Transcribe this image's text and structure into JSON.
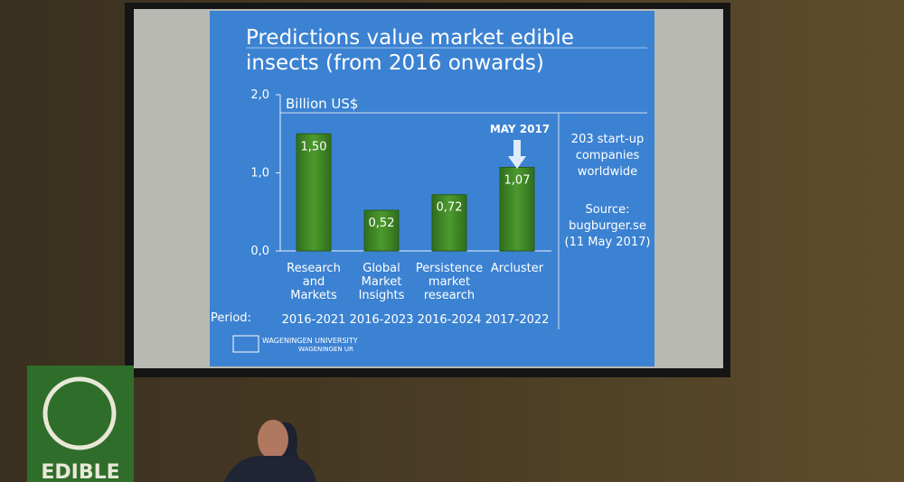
{
  "chart_data": {
    "type": "bar",
    "title": "Predictions value market edible insects (from 2016 onwards)",
    "y_label": "Billion US$",
    "categories": [
      "Research and Markets",
      "Global Market Insights",
      "Persistence market research",
      "Arcluster"
    ],
    "values": [
      1.5,
      0.52,
      0.72,
      1.07
    ],
    "value_labels": [
      "1,50",
      "0,52",
      "0,72",
      "1,07"
    ],
    "periods": [
      "2016-2021",
      "2016-2023",
      "2016-2024",
      "2017-2022"
    ],
    "period_label": "Period:",
    "annotation": "MAY 2017",
    "note": "203 start-up companies worldwide",
    "source": "Source: bugburger.se (11 May 2017)",
    "color": "#3f8a2a",
    "ylim": [
      0,
      2
    ],
    "yticks": [
      {
        "value": 0,
        "label": "0,0"
      },
      {
        "value": 1,
        "label": "1,0"
      },
      {
        "value": 2,
        "label": "2,0"
      }
    ]
  },
  "logo": {
    "name": "WAGENINGEN UNIVERSITY",
    "sub": "WAGENINGEN UR"
  },
  "sign": {
    "text": "EDIBLE"
  }
}
